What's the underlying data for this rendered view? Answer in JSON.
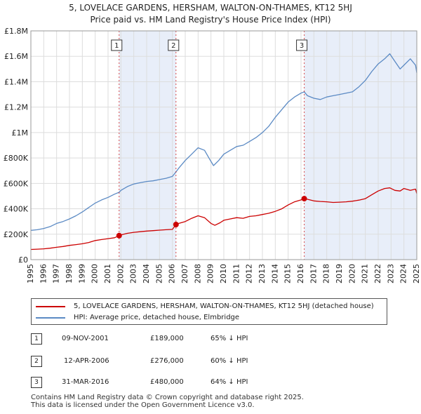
{
  "title_line1": "5, LOVELACE GARDENS, HERSHAM, WALTON-ON-THAMES, KT12 5HJ",
  "title_line2": "Price paid vs. HM Land Registry's House Price Index (HPI)",
  "legend": {
    "red_label": "5, LOVELACE GARDENS, HERSHAM, WALTON-ON-THAMES, KT12 5HJ (detached house)",
    "blue_label": "HPI: Average price, detached house, Elmbridge"
  },
  "colors": {
    "red": "#cc0000",
    "blue": "#5b8ac4",
    "shade": "#e8eef9",
    "grid": "#dddddd"
  },
  "transactions": [
    {
      "num": "1",
      "date": "09-NOV-2001",
      "price": "£189,000",
      "hpi": "65% ↓ HPI"
    },
    {
      "num": "2",
      "date": "12-APR-2006",
      "price": "£276,000",
      "hpi": "60% ↓ HPI"
    },
    {
      "num": "3",
      "date": "31-MAR-2016",
      "price": "£480,000",
      "hpi": "64% ↓ HPI"
    }
  ],
  "footer_line1": "Contains HM Land Registry data © Crown copyright and database right 2025.",
  "footer_line2": "This data is licensed under the Open Government Licence v3.0.",
  "chart_data": {
    "type": "line",
    "title": "5, LOVELACE GARDENS, HERSHAM, WALTON-ON-THAMES, KT12 5HJ — Price paid vs. HM Land Registry's House Price Index (HPI)",
    "xlim": [
      1995,
      2025
    ],
    "ylim": [
      0,
      1800000
    ],
    "x_ticks": [
      1995,
      1996,
      1997,
      1998,
      1999,
      2000,
      2001,
      2002,
      2003,
      2004,
      2005,
      2006,
      2007,
      2008,
      2009,
      2010,
      2011,
      2012,
      2013,
      2014,
      2015,
      2016,
      2017,
      2018,
      2019,
      2020,
      2021,
      2022,
      2023,
      2024,
      2025
    ],
    "y_ticks": [
      {
        "value": 0,
        "label": "£0"
      },
      {
        "value": 200000,
        "label": "£200K"
      },
      {
        "value": 400000,
        "label": "£400K"
      },
      {
        "value": 600000,
        "label": "£600K"
      },
      {
        "value": 800000,
        "label": "£800K"
      },
      {
        "value": 1000000,
        "label": "£1M"
      },
      {
        "value": 1200000,
        "label": "£1.2M"
      },
      {
        "value": 1400000,
        "label": "£1.4M"
      },
      {
        "value": 1600000,
        "label": "£1.6M"
      },
      {
        "value": 1800000,
        "label": "£1.8M"
      }
    ],
    "shaded_ranges": [
      [
        2001.86,
        2006.28
      ],
      [
        2016.25,
        2025
      ]
    ],
    "markers": [
      {
        "label": "1",
        "x": 2001.86,
        "y": 189000
      },
      {
        "label": "2",
        "x": 2006.28,
        "y": 276000
      },
      {
        "label": "3",
        "x": 2016.25,
        "y": 480000
      }
    ],
    "series": [
      {
        "name": "5, LOVELACE GARDENS, HERSHAM, WALTON-ON-THAMES, KT12 5HJ (detached house)",
        "color": "#cc0000",
        "x": [
          1995,
          1995.5,
          1996,
          1996.5,
          1997,
          1997.5,
          1998,
          1998.5,
          1999,
          1999.5,
          2000,
          2000.5,
          2001,
          2001.5,
          2001.86,
          2002,
          2002.5,
          2003,
          2003.5,
          2004,
          2004.5,
          2005,
          2005.5,
          2006,
          2006.28,
          2006.5,
          2007,
          2007.5,
          2008,
          2008.5,
          2009,
          2009.3,
          2009.7,
          2010,
          2010.5,
          2011,
          2011.5,
          2012,
          2012.5,
          2013,
          2013.5,
          2014,
          2014.5,
          2015,
          2015.5,
          2016,
          2016.25,
          2016.5,
          2017,
          2017.5,
          2018,
          2018.5,
          2019,
          2019.5,
          2020,
          2020.5,
          2021,
          2021.5,
          2022,
          2022.5,
          2022.9,
          2023.3,
          2023.7,
          2024,
          2024.5,
          2024.9,
          2025
        ],
        "y": [
          80000,
          82000,
          85000,
          90000,
          97000,
          103000,
          112000,
          118000,
          125000,
          135000,
          150000,
          158000,
          165000,
          172000,
          189000,
          195000,
          207000,
          215000,
          220000,
          225000,
          228000,
          232000,
          235000,
          238000,
          276000,
          285000,
          300000,
          325000,
          345000,
          330000,
          285000,
          270000,
          290000,
          310000,
          320000,
          330000,
          325000,
          340000,
          345000,
          355000,
          365000,
          380000,
          400000,
          430000,
          455000,
          470000,
          480000,
          475000,
          462000,
          458000,
          455000,
          450000,
          452000,
          455000,
          460000,
          468000,
          480000,
          510000,
          540000,
          560000,
          565000,
          545000,
          540000,
          560000,
          545000,
          555000,
          520000
        ]
      },
      {
        "name": "HPI: Average price, detached house, Elmbridge",
        "color": "#5b8ac4",
        "x": [
          1995,
          1995.5,
          1996,
          1996.5,
          1997,
          1997.5,
          1998,
          1998.5,
          1999,
          1999.5,
          2000,
          2000.5,
          2001,
          2001.5,
          2001.86,
          2002,
          2002.5,
          2003,
          2003.5,
          2004,
          2004.5,
          2005,
          2005.5,
          2006,
          2006.28,
          2006.5,
          2007,
          2007.5,
          2008,
          2008.5,
          2008.9,
          2009.2,
          2009.6,
          2010,
          2010.5,
          2011,
          2011.5,
          2012,
          2012.5,
          2013,
          2013.5,
          2014,
          2014.5,
          2015,
          2015.5,
          2016,
          2016.25,
          2016.5,
          2017,
          2017.5,
          2018,
          2018.5,
          2019,
          2019.5,
          2020,
          2020.5,
          2021,
          2021.5,
          2022,
          2022.5,
          2022.9,
          2023.3,
          2023.7,
          2024,
          2024.5,
          2024.9,
          2025
        ],
        "y": [
          230000,
          235000,
          245000,
          260000,
          285000,
          300000,
          320000,
          345000,
          375000,
          410000,
          445000,
          470000,
          490000,
          515000,
          530000,
          545000,
          575000,
          595000,
          605000,
          615000,
          620000,
          630000,
          640000,
          655000,
          690000,
          720000,
          780000,
          830000,
          880000,
          860000,
          790000,
          740000,
          780000,
          830000,
          860000,
          890000,
          900000,
          930000,
          960000,
          1000000,
          1050000,
          1120000,
          1180000,
          1240000,
          1280000,
          1310000,
          1320000,
          1290000,
          1270000,
          1260000,
          1280000,
          1290000,
          1300000,
          1310000,
          1320000,
          1360000,
          1410000,
          1480000,
          1540000,
          1580000,
          1620000,
          1560000,
          1500000,
          1530000,
          1580000,
          1530000,
          1470000
        ]
      }
    ]
  }
}
